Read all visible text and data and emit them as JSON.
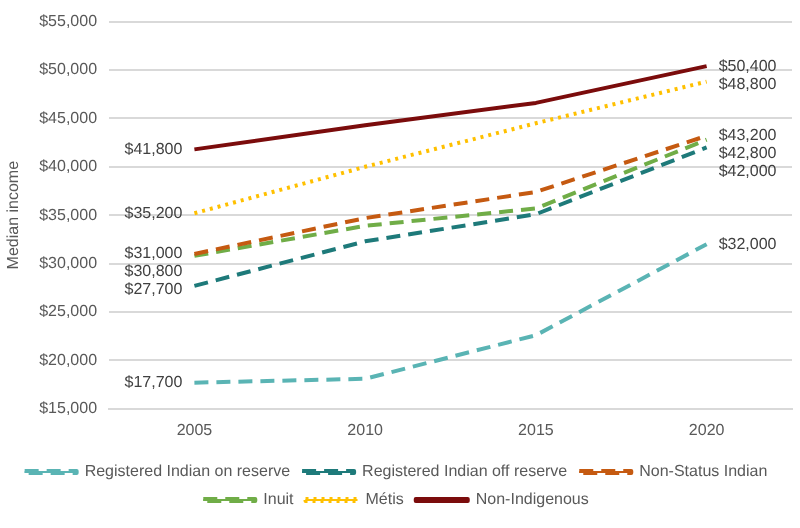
{
  "chart_data": {
    "type": "line",
    "ylabel": "Median income",
    "categories": [
      "2005",
      "2010",
      "2015",
      "2020"
    ],
    "ylim": [
      15000,
      55000
    ],
    "yticks": [
      {
        "value": 15000,
        "label": "$15,000"
      },
      {
        "value": 20000,
        "label": "$20,000"
      },
      {
        "value": 25000,
        "label": "$25,000"
      },
      {
        "value": 30000,
        "label": "$30,000"
      },
      {
        "value": 35000,
        "label": "$35,000"
      },
      {
        "value": 40000,
        "label": "$40,000"
      },
      {
        "value": 45000,
        "label": "$45,000"
      },
      {
        "value": 50000,
        "label": "$50,000"
      },
      {
        "value": 55000,
        "label": "$55,000"
      }
    ],
    "grid": "y",
    "legend": "bottom",
    "marker": "none",
    "series": [
      {
        "name": "Registered Indian on reserve",
        "color": "#5ab4b4",
        "line_style": "dashed",
        "values": [
          17700,
          18100,
          22600,
          32000
        ],
        "value_labels": [
          "$17,700",
          null,
          null,
          "$32,000"
        ]
      },
      {
        "name": "Registered Indian off reserve",
        "color": "#1e7a7a",
        "line_style": "dashed",
        "values": [
          27700,
          32300,
          35100,
          42000
        ],
        "value_labels": [
          "$27,700",
          null,
          null,
          "$42,000"
        ]
      },
      {
        "name": "Non-Status Indian",
        "color": "#c55a11",
        "line_style": "dashed",
        "values": [
          31000,
          34700,
          37400,
          43200
        ],
        "value_labels": [
          "$31,000",
          null,
          null,
          "$43,200"
        ]
      },
      {
        "name": "Inuit",
        "color": "#70ad47",
        "line_style": "dashed",
        "values": [
          30800,
          33900,
          35700,
          42800
        ],
        "value_labels": [
          "$30,800",
          null,
          null,
          "$42,800"
        ]
      },
      {
        "name": "Métis",
        "color": "#ffc000",
        "line_style": "dotted",
        "values": [
          35200,
          40000,
          44500,
          48800
        ],
        "value_labels": [
          "$35,200",
          null,
          null,
          "$48,800"
        ]
      },
      {
        "name": "Non-Indigenous",
        "color": "#7b0c0c",
        "line_style": "solid",
        "values": [
          41800,
          44300,
          46600,
          50400
        ],
        "value_labels": [
          "$41,800",
          null,
          null,
          "$50,400"
        ]
      }
    ]
  }
}
